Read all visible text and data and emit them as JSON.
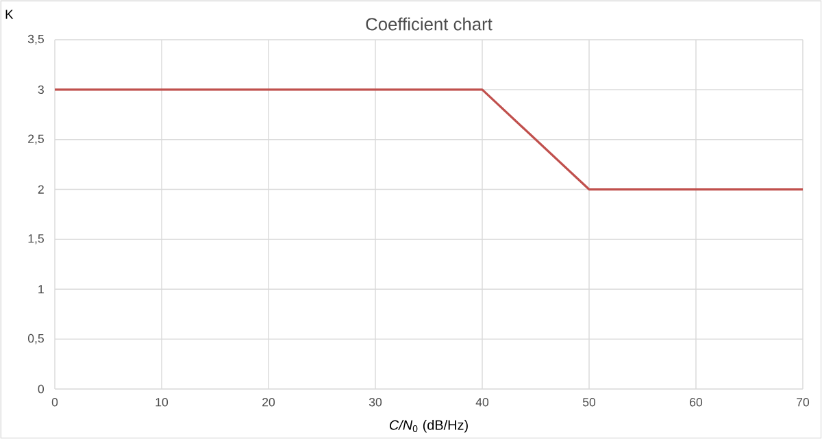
{
  "chart_data": {
    "type": "line",
    "title": "Coefficient chart",
    "xlabel": "*C/N*$_{0}$ (dB/Hz)",
    "ylabel": "K",
    "x": [
      0,
      40,
      50,
      70
    ],
    "series": [
      {
        "color": "#c0504d",
        "values": [
          3,
          3,
          2,
          2
        ]
      }
    ],
    "xlim": [
      0,
      70
    ],
    "xticks": [
      0,
      10,
      20,
      30,
      40,
      50,
      60,
      70
    ],
    "ylim": [
      0,
      3.5
    ],
    "yticks": [
      0,
      {
        "value": 0.5,
        "label": "0,5"
      },
      1,
      {
        "value": 1.5,
        "label": "1,5"
      },
      2,
      {
        "value": 2.5,
        "label": "2,5"
      },
      3,
      {
        "value": 3.5,
        "label": "3,5"
      }
    ],
    "grid": true,
    "marker": "none",
    "line_style": "solid"
  }
}
